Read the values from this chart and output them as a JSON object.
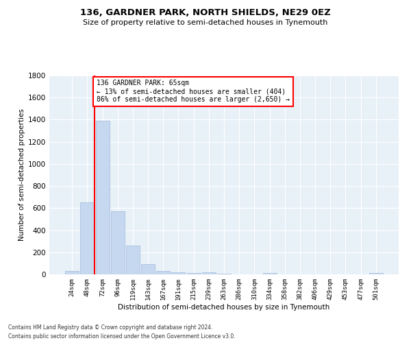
{
  "title1": "136, GARDNER PARK, NORTH SHIELDS, NE29 0EZ",
  "title2": "Size of property relative to semi-detached houses in Tynemouth",
  "xlabel": "Distribution of semi-detached houses by size in Tynemouth",
  "ylabel": "Number of semi-detached properties",
  "categories": [
    "24sqm",
    "48sqm",
    "72sqm",
    "96sqm",
    "119sqm",
    "143sqm",
    "167sqm",
    "191sqm",
    "215sqm",
    "239sqm",
    "263sqm",
    "286sqm",
    "310sqm",
    "334sqm",
    "358sqm",
    "382sqm",
    "406sqm",
    "429sqm",
    "453sqm",
    "477sqm",
    "501sqm"
  ],
  "values": [
    30,
    650,
    1390,
    570,
    260,
    95,
    30,
    20,
    15,
    20,
    5,
    0,
    0,
    15,
    0,
    0,
    0,
    0,
    0,
    0,
    10
  ],
  "bar_color": "#c5d8f0",
  "bar_edge_color": "#a0b8d8",
  "vline_color": "red",
  "vline_x": 1.5,
  "annotation_title": "136 GARDNER PARK: 65sqm",
  "annotation_line1": "← 13% of semi-detached houses are smaller (404)",
  "annotation_line2": "86% of semi-detached houses are larger (2,650) →",
  "annotation_box_color": "white",
  "annotation_box_edge": "red",
  "ylim": [
    0,
    1800
  ],
  "yticks": [
    0,
    200,
    400,
    600,
    800,
    1000,
    1200,
    1400,
    1600,
    1800
  ],
  "footnote1": "Contains HM Land Registry data © Crown copyright and database right 2024.",
  "footnote2": "Contains public sector information licensed under the Open Government Licence v3.0.",
  "bg_color": "#e8f0f8",
  "grid_color": "#ffffff"
}
